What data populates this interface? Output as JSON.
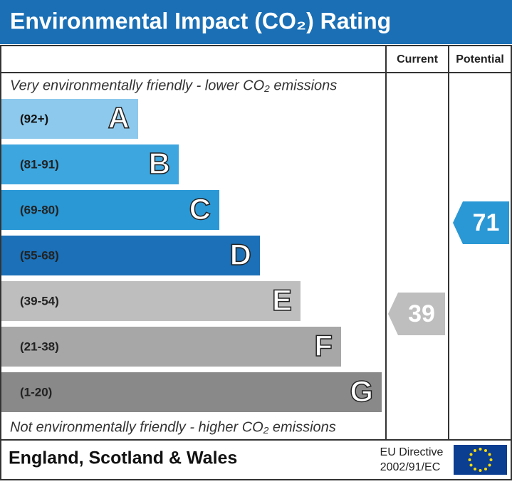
{
  "title": "Environmental Impact (CO₂) Rating",
  "headers": {
    "current": "Current",
    "potential": "Potential"
  },
  "top_note": "Very environmentally friendly - lower CO₂ emissions",
  "bottom_note": "Not environmentally friendly - higher CO₂ emissions",
  "bands": [
    {
      "range": "(92+)",
      "letter": "A",
      "color": "#8dc9ec"
    },
    {
      "range": "(81-91)",
      "letter": "B",
      "color": "#3ea6de"
    },
    {
      "range": "(69-80)",
      "letter": "C",
      "color": "#2a98d5"
    },
    {
      "range": "(55-68)",
      "letter": "D",
      "color": "#1b70b7"
    },
    {
      "range": "(39-54)",
      "letter": "E",
      "color": "#bebebe"
    },
    {
      "range": "(21-38)",
      "letter": "F",
      "color": "#a7a7a7"
    },
    {
      "range": "(1-20)",
      "letter": "G",
      "color": "#898989"
    }
  ],
  "current": {
    "value": 39
  },
  "potential": {
    "value": 71
  },
  "footer": {
    "region": "England, Scotland & Wales",
    "directive": [
      "EU Directive",
      "2002/91/EC"
    ]
  }
}
